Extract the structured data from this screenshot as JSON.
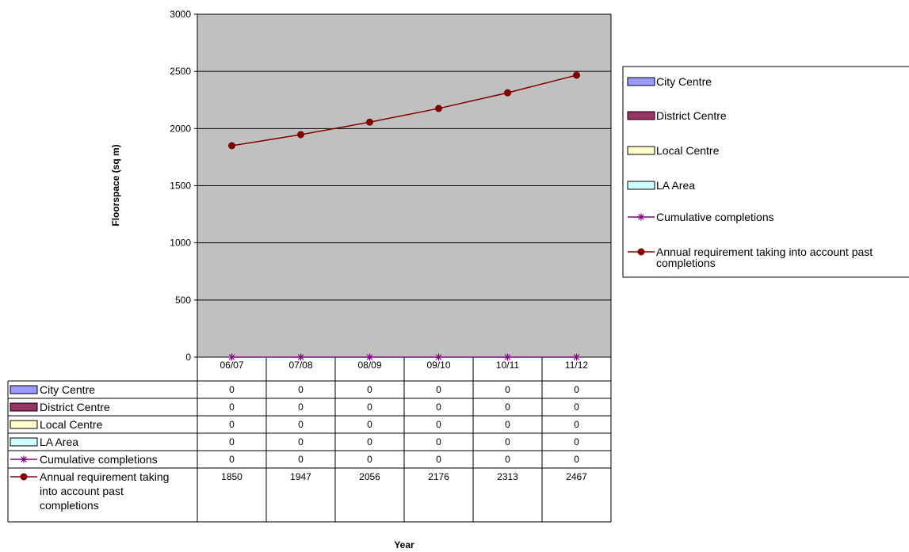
{
  "chart_data": {
    "type": "line",
    "title": "",
    "xlabel": "Year",
    "ylabel": "Floorspace (sq m)",
    "ylim": [
      0,
      3000
    ],
    "yticks": [
      0,
      500,
      1000,
      1500,
      2000,
      2500,
      3000
    ],
    "grid": true,
    "legend_position": "right",
    "plot_background": "#c0c0c0",
    "categories": [
      "06/07",
      "07/08",
      "08/09",
      "09/10",
      "10/11",
      "11/12"
    ],
    "series": [
      {
        "name": "City Centre",
        "kind": "bar",
        "color": "#9999ff",
        "values": [
          0,
          0,
          0,
          0,
          0,
          0
        ]
      },
      {
        "name": "District Centre",
        "kind": "bar",
        "color": "#993366",
        "values": [
          0,
          0,
          0,
          0,
          0,
          0
        ]
      },
      {
        "name": "Local Centre",
        "kind": "bar",
        "color": "#ffffcc",
        "values": [
          0,
          0,
          0,
          0,
          0,
          0
        ]
      },
      {
        "name": "LA Area",
        "kind": "bar",
        "color": "#ccffff",
        "values": [
          0,
          0,
          0,
          0,
          0,
          0
        ]
      },
      {
        "name": "Cumulative completions",
        "kind": "line",
        "marker": "star",
        "color": "#800080",
        "values": [
          0,
          0,
          0,
          0,
          0,
          0
        ]
      },
      {
        "name": "Annual requirement taking into account past completions",
        "kind": "line",
        "marker": "circle",
        "color": "#800000",
        "values": [
          1850,
          1947,
          2056,
          2176,
          2313,
          2467
        ]
      }
    ],
    "table_label_lines": [
      [
        "City Centre"
      ],
      [
        "District Centre"
      ],
      [
        "Local Centre"
      ],
      [
        "LA Area"
      ],
      [
        "Cumulative completions"
      ],
      [
        "Annual requirement taking",
        "into account past",
        "completions"
      ]
    ],
    "legend_label_lines": [
      [
        "City Centre"
      ],
      [
        "District Centre"
      ],
      [
        "Local Centre"
      ],
      [
        "LA Area"
      ],
      [
        "Cumulative completions"
      ],
      [
        "Annual requirement taking into account past",
        "completions"
      ]
    ]
  }
}
